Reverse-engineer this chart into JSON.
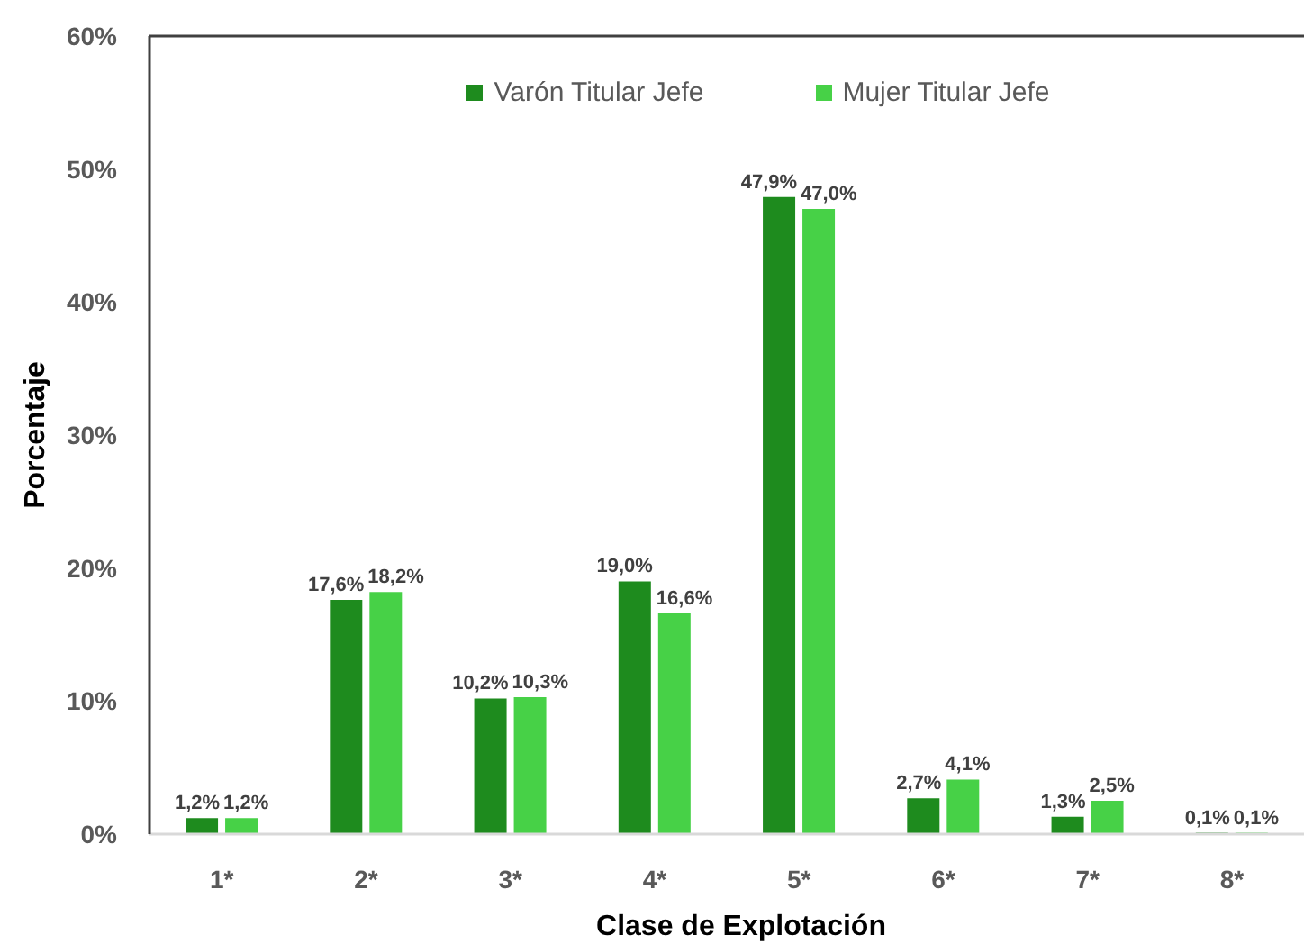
{
  "chart_data": {
    "type": "bar",
    "xlabel": "Clase de Explotación",
    "ylabel": "Porcentaje",
    "categories": [
      "1*",
      "2*",
      "3*",
      "4*",
      "5*",
      "6*",
      "7*",
      "8*"
    ],
    "series": [
      {
        "name": "Varón Titular Jefe",
        "color": "#1e8b1e",
        "values": [
          1.2,
          17.6,
          10.2,
          19.0,
          47.9,
          2.7,
          1.3,
          0.1
        ],
        "value_labels": [
          "1,2%",
          "17,6%",
          "10,2%",
          "19,0%",
          "47,9%",
          "2,7%",
          "1,3%",
          "0,1%"
        ]
      },
      {
        "name": "Mujer Titular Jefe",
        "color": "#47d147",
        "values": [
          1.2,
          18.2,
          10.3,
          16.6,
          47.0,
          4.1,
          2.5,
          0.1
        ],
        "value_labels": [
          "1,2%",
          "18,2%",
          "10,3%",
          "16,6%",
          "47,0%",
          "4,1%",
          "2,5%",
          "0,1%"
        ]
      }
    ],
    "ylim": [
      0,
      60
    ],
    "yticks": [
      {
        "value": 0,
        "label": "0%"
      },
      {
        "value": 10,
        "label": "10%"
      },
      {
        "value": 20,
        "label": "20%"
      },
      {
        "value": 30,
        "label": "30%"
      },
      {
        "value": 40,
        "label": "40%"
      },
      {
        "value": 50,
        "label": "50%"
      },
      {
        "value": 60,
        "label": "60%"
      }
    ],
    "legend": "top"
  }
}
